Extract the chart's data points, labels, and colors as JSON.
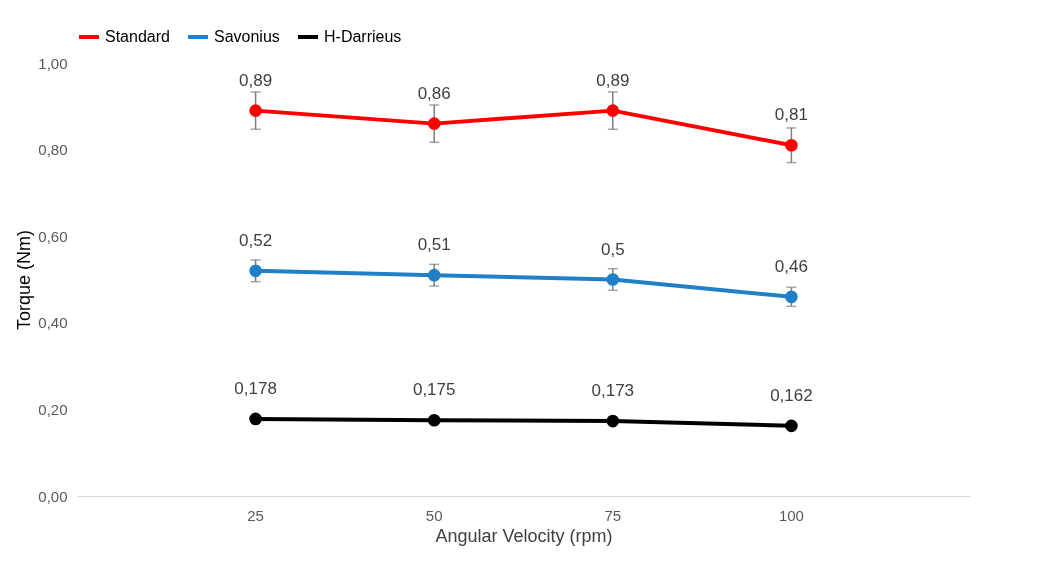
{
  "chart_data": {
    "type": "line",
    "xlabel": "Angular Velocity (rpm)",
    "ylabel": "Torque (Nm)",
    "categories": [
      "25",
      "50",
      "75",
      "100"
    ],
    "ylim": [
      0,
      1.0
    ],
    "yticks": [
      {
        "value": 0,
        "label": "0,00"
      },
      {
        "value": 0.2,
        "label": "0,20"
      },
      {
        "value": 0.4,
        "label": "0,40"
      },
      {
        "value": 0.6,
        "label": "0,60"
      },
      {
        "value": 0.8,
        "label": "0,80"
      },
      {
        "value": 1.0,
        "label": "1,00"
      }
    ],
    "series": [
      {
        "name": "Standard",
        "color": "#ff0000",
        "values": [
          0.89,
          0.86,
          0.89,
          0.81
        ],
        "errors": [
          0.043,
          0.043,
          0.043,
          0.04
        ],
        "value_labels": [
          "0,89",
          "0,86",
          "0,89",
          "0,81"
        ]
      },
      {
        "name": "Savonius",
        "color": "#1f80c8",
        "values": [
          0.52,
          0.51,
          0.5,
          0.46
        ],
        "errors": [
          0.025,
          0.025,
          0.025,
          0.022
        ],
        "value_labels": [
          "0,52",
          "0,51",
          "0,5",
          "0,46"
        ]
      },
      {
        "name": "H-Darrieus",
        "color": "#000000",
        "values": [
          0.178,
          0.175,
          0.173,
          0.162
        ],
        "value_labels": [
          "0,178",
          "0,175",
          "0,173",
          "0,162"
        ]
      }
    ],
    "legend": "top",
    "grid": false,
    "marker": "circle",
    "line_style": "solid"
  }
}
